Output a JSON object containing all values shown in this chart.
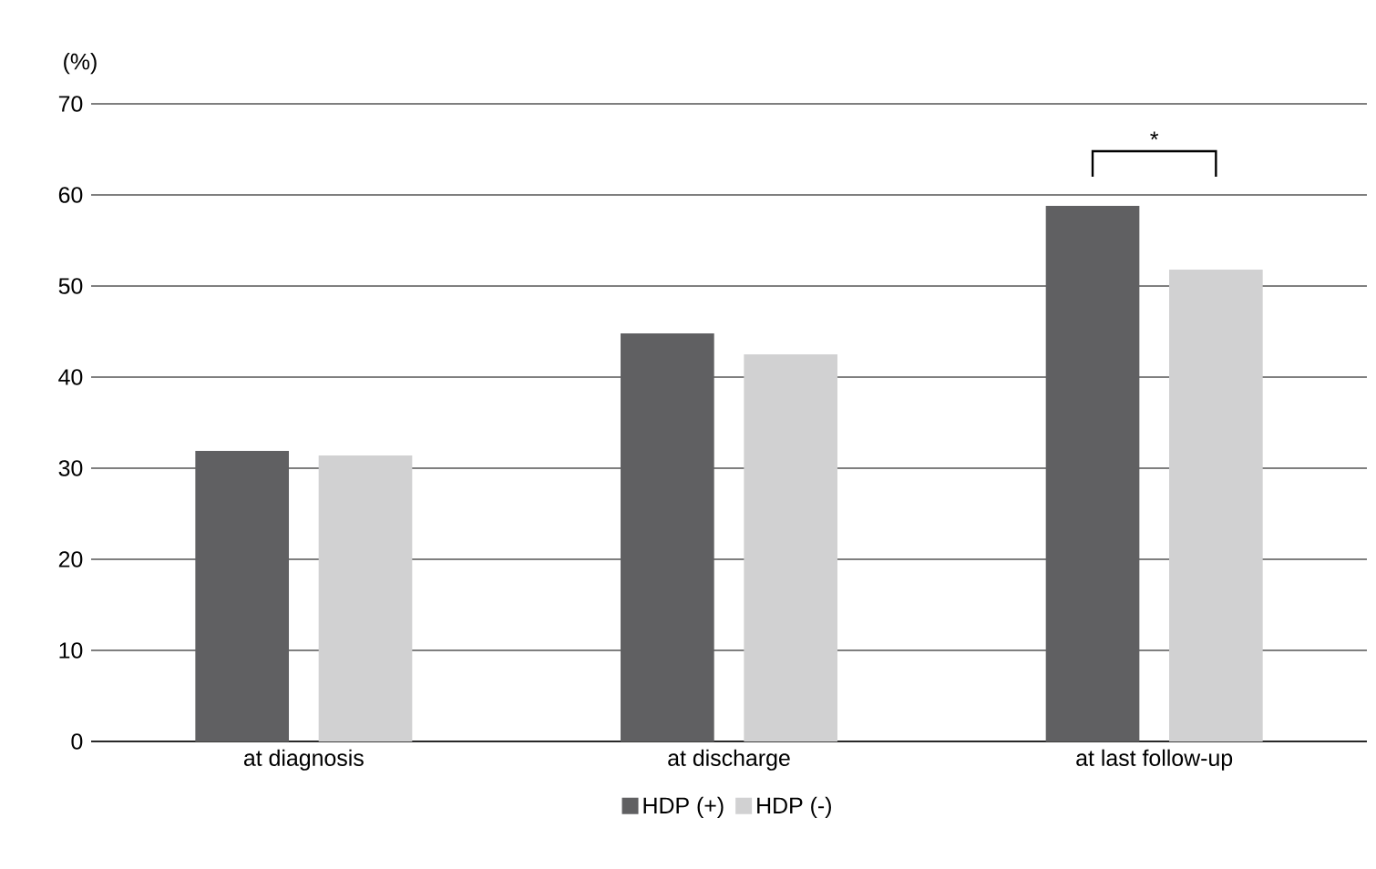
{
  "chart_data": {
    "type": "bar",
    "ylabel": "(%)",
    "categories": [
      "at diagnosis",
      "at discharge",
      "at last follow-up"
    ],
    "series": [
      {
        "name": "HDP (+)",
        "color": "#606062",
        "values": [
          31.9,
          44.8,
          58.8
        ]
      },
      {
        "name": "HDP (-)",
        "color": "#d1d1d2",
        "values": [
          31.4,
          42.5,
          51.8
        ]
      }
    ],
    "ylim": [
      0,
      70
    ],
    "yticks": [
      0,
      10,
      20,
      30,
      40,
      50,
      60,
      70
    ],
    "grid": "y",
    "legend": "bottom",
    "annotations": [
      "*"
    ]
  }
}
